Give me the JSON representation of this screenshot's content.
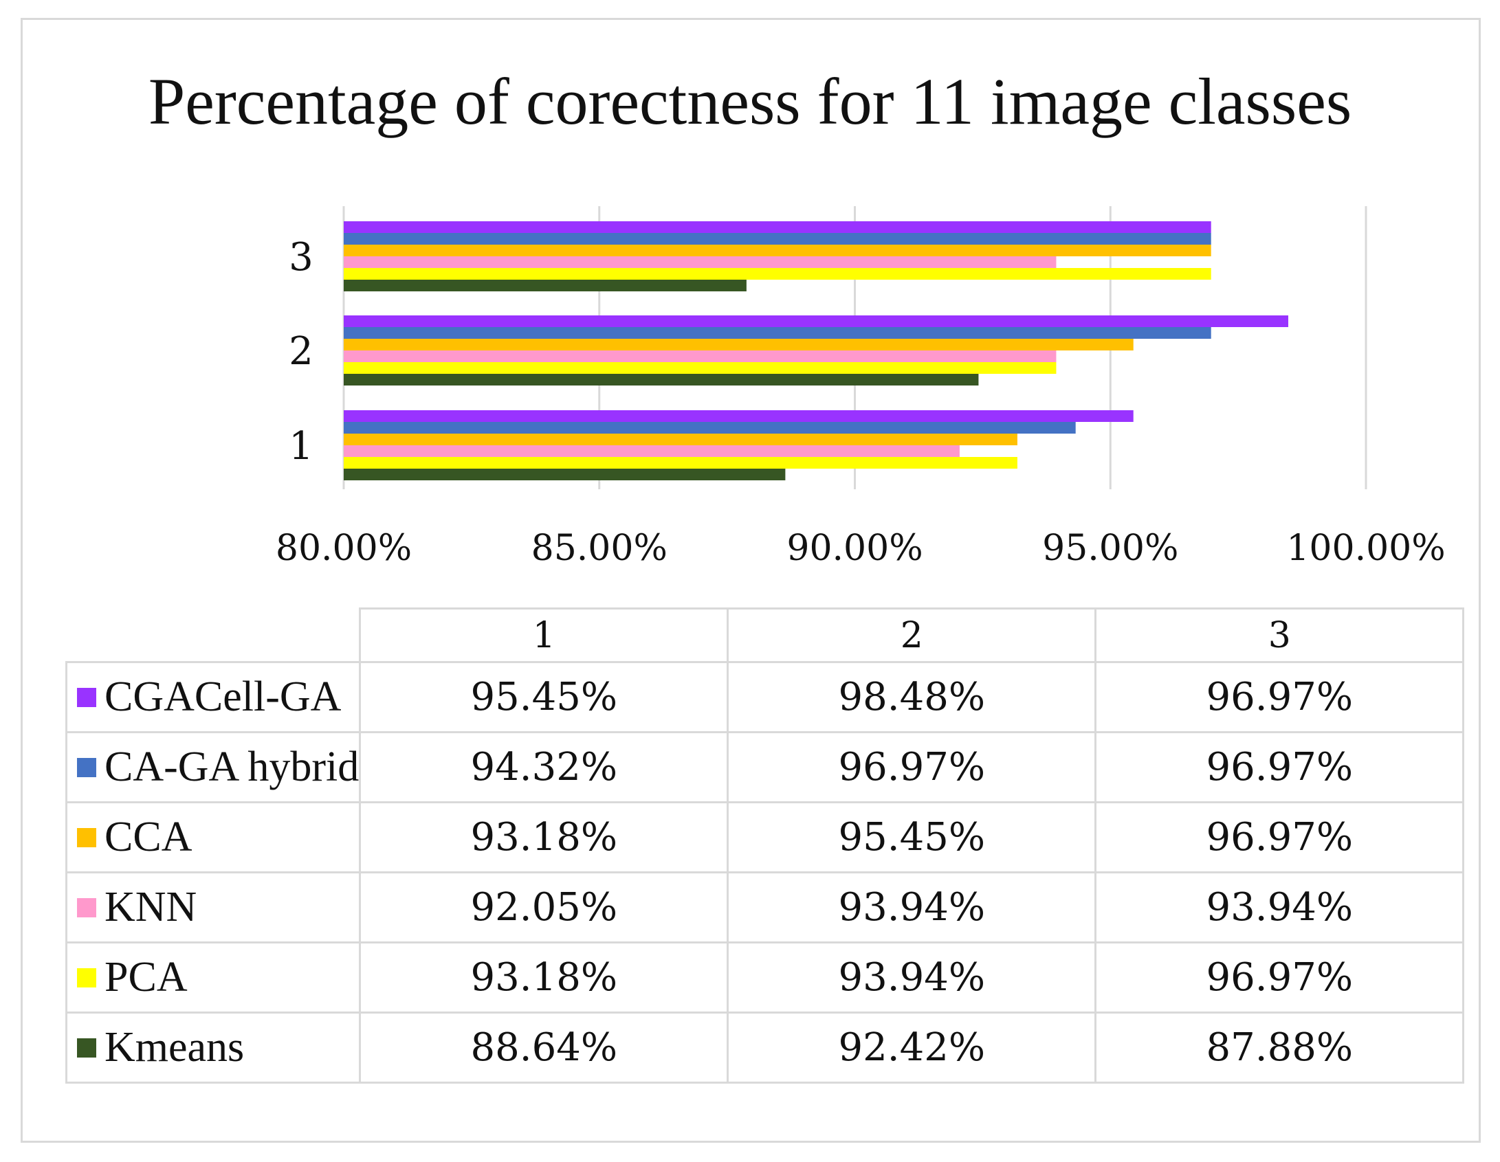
{
  "chart_data": {
    "type": "bar",
    "orientation": "horizontal",
    "title": "Percentage of corectness for 11 image classes",
    "categories": [
      "1",
      "2",
      "3"
    ],
    "xlim": [
      0.8,
      1.0
    ],
    "xticks": [
      0.8,
      0.85,
      0.9,
      0.95,
      1.0
    ],
    "xtick_labels": [
      "80.00%",
      "85.00%",
      "90.00%",
      "95.00%",
      "100.00%"
    ],
    "grid": true,
    "legend": "data-table-below",
    "series": [
      {
        "name": "CGACell-GA",
        "color": "#9933ff",
        "values": [
          0.9545,
          0.9848,
          0.9697
        ],
        "labels": [
          "95.45%",
          "98.48%",
          "96.97%"
        ]
      },
      {
        "name": "CA-GA hybrid",
        "color": "#4472c4",
        "values": [
          0.9432,
          0.9697,
          0.9697
        ],
        "labels": [
          "94.32%",
          "96.97%",
          "96.97%"
        ]
      },
      {
        "name": "CCA",
        "color": "#ffc000",
        "values": [
          0.9318,
          0.9545,
          0.9697
        ],
        "labels": [
          "93.18%",
          "95.45%",
          "96.97%"
        ]
      },
      {
        "name": "KNN",
        "color": "#ff99cc",
        "values": [
          0.9205,
          0.9394,
          0.9394
        ],
        "labels": [
          "92.05%",
          "93.94%",
          "93.94%"
        ]
      },
      {
        "name": "PCA",
        "color": "#ffff00",
        "values": [
          0.9318,
          0.9394,
          0.9697
        ],
        "labels": [
          "93.18%",
          "93.94%",
          "96.97%"
        ]
      },
      {
        "name": "Kmeans",
        "color": "#375623",
        "values": [
          0.8864,
          0.9242,
          0.8788
        ],
        "labels": [
          "88.64%",
          "92.42%",
          "87.88%"
        ]
      }
    ]
  }
}
